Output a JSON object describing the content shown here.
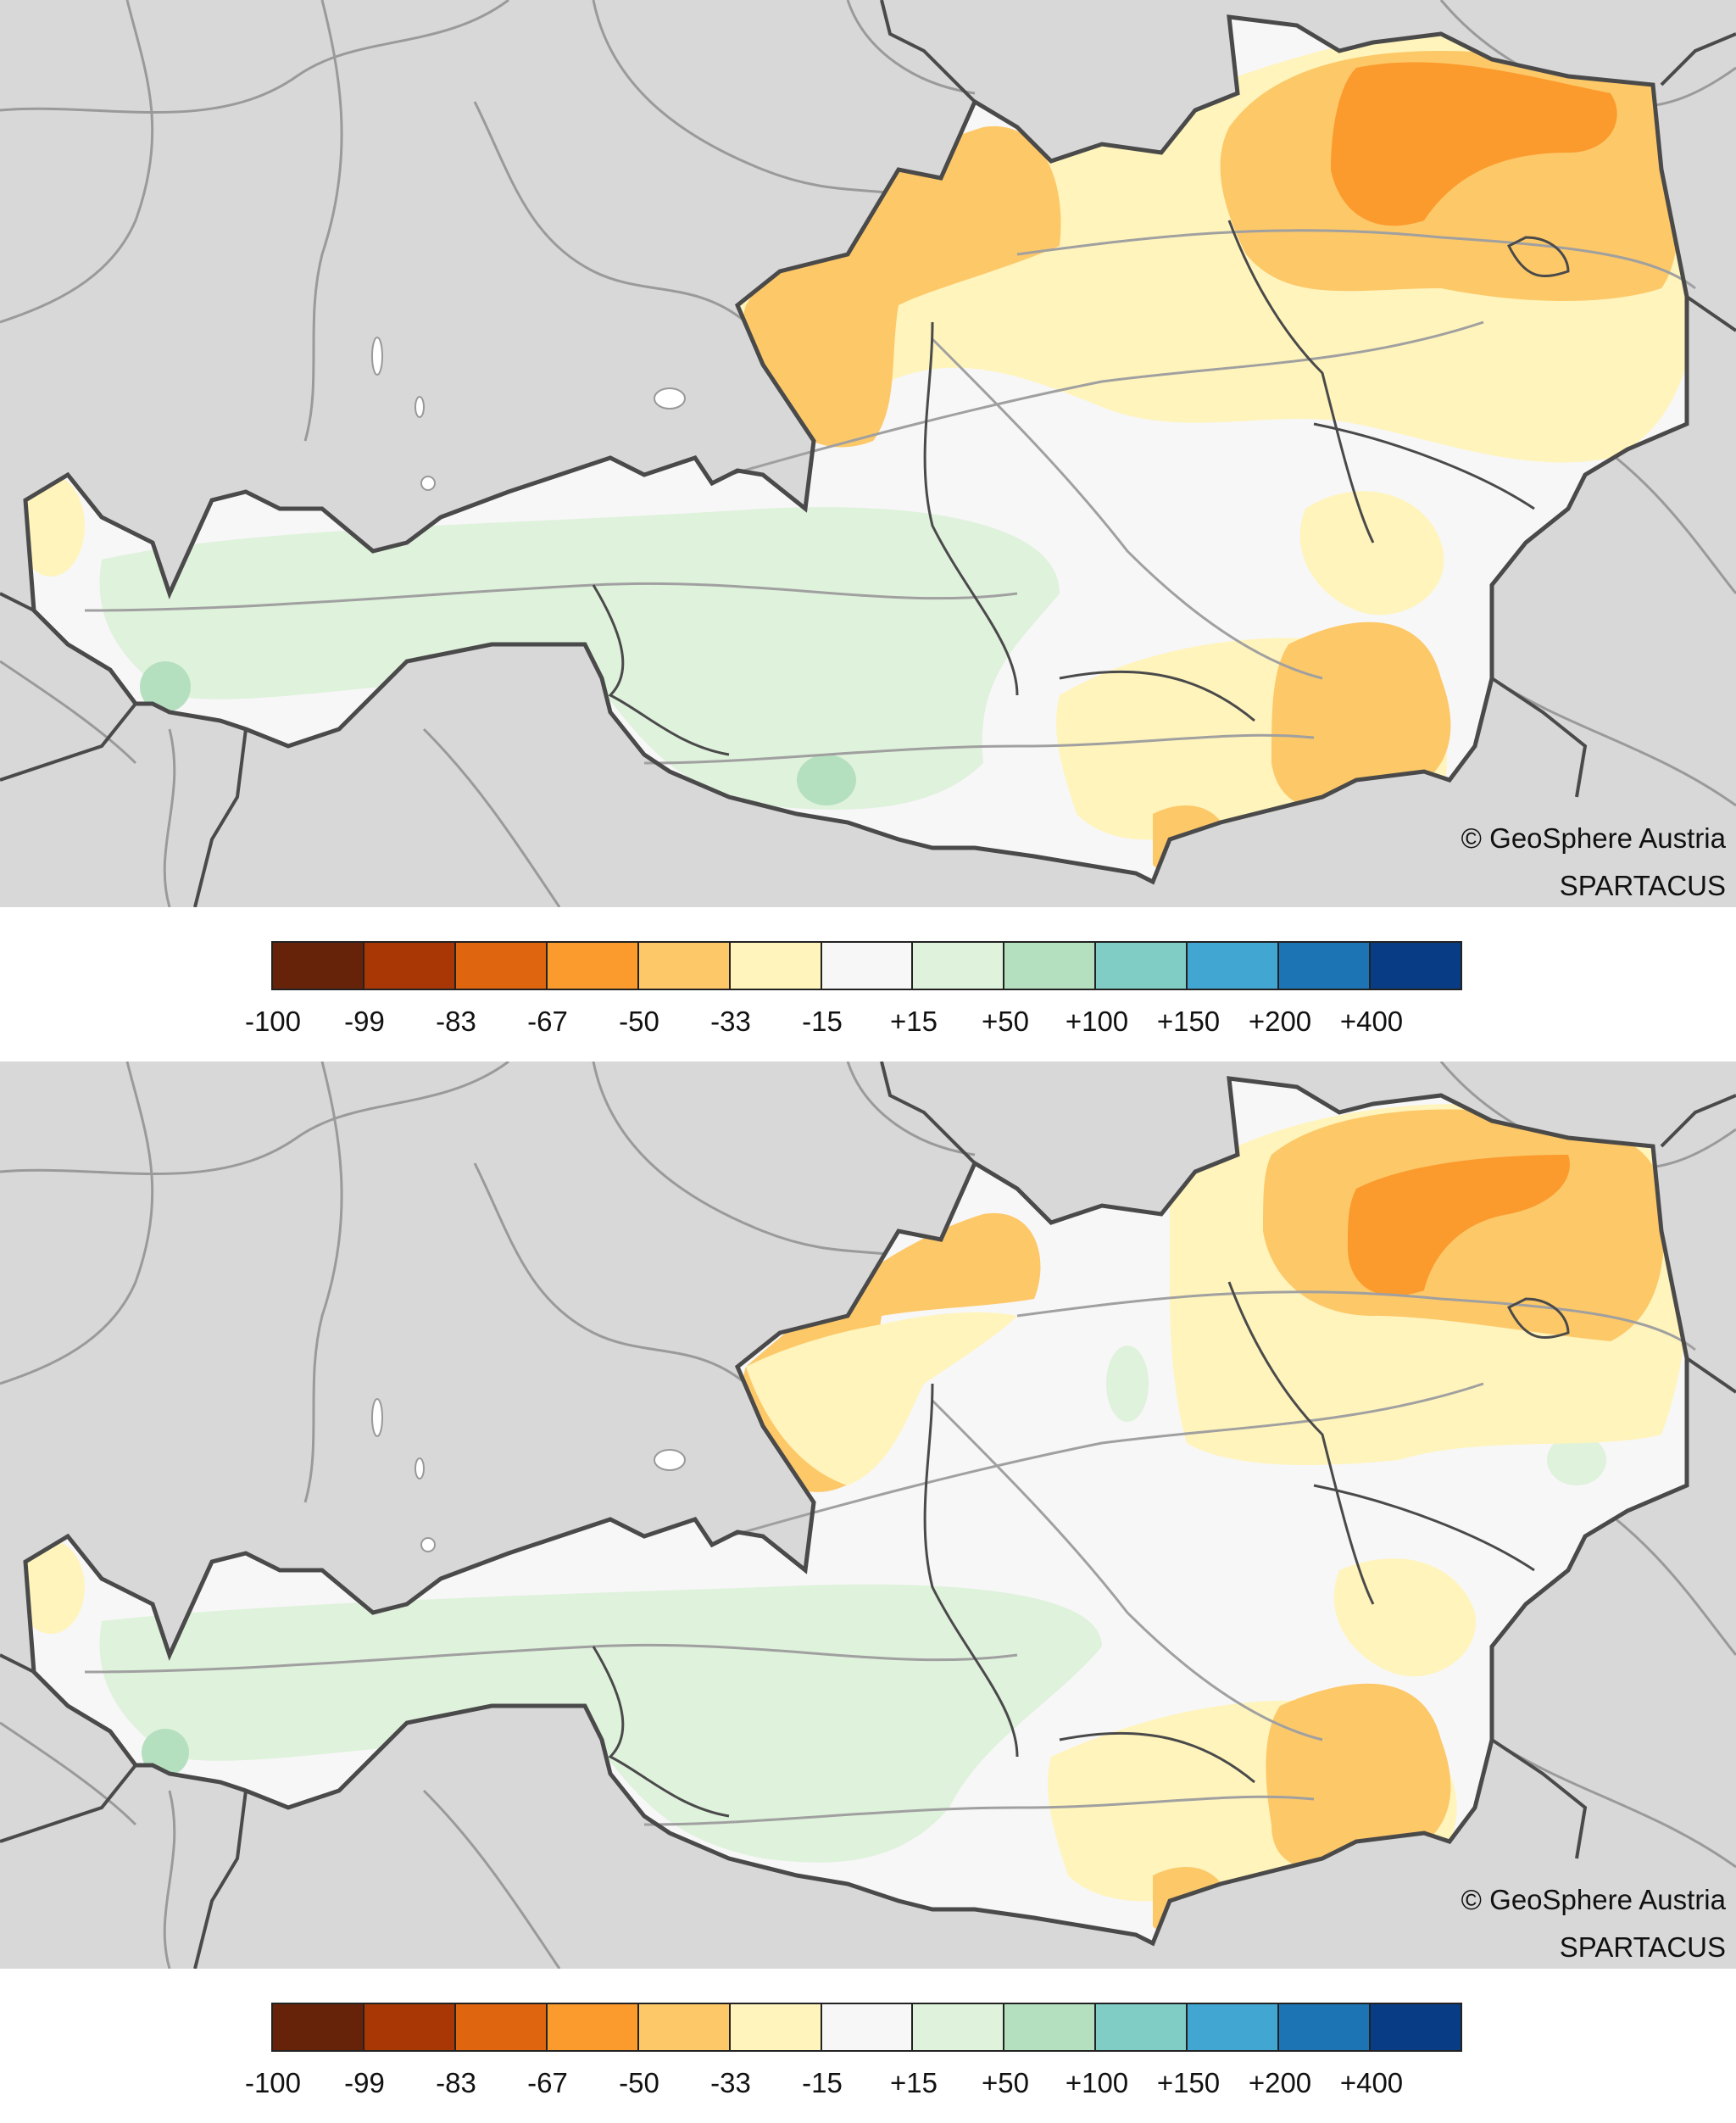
{
  "maps": [
    {
      "credit_line1": "© GeoSphere Austria",
      "credit_line2": "SPARTACUS"
    },
    {
      "credit_line1": "© GeoSphere Austria",
      "credit_line2": "SPARTACUS"
    }
  ],
  "legend": {
    "labels": [
      "-100",
      "-99",
      "-83",
      "-67",
      "-50",
      "-33",
      "-15",
      "+15",
      "+50",
      "+100",
      "+150",
      "+200",
      "+400"
    ],
    "colors": [
      "#67230a",
      "#a83705",
      "#e0650f",
      "#fb9a2d",
      "#fdc868",
      "#fff4bc",
      "#f7f7f7",
      "#dff2dc",
      "#b5e0c0",
      "#7fcdc4",
      "#42a6d2",
      "#1c74b4",
      "#083c84"
    ]
  },
  "colors": {
    "background": "#d8d8d8",
    "austria_base": "#f7f7f7",
    "border": "#4a4a4a",
    "rivers": "#999999"
  }
}
